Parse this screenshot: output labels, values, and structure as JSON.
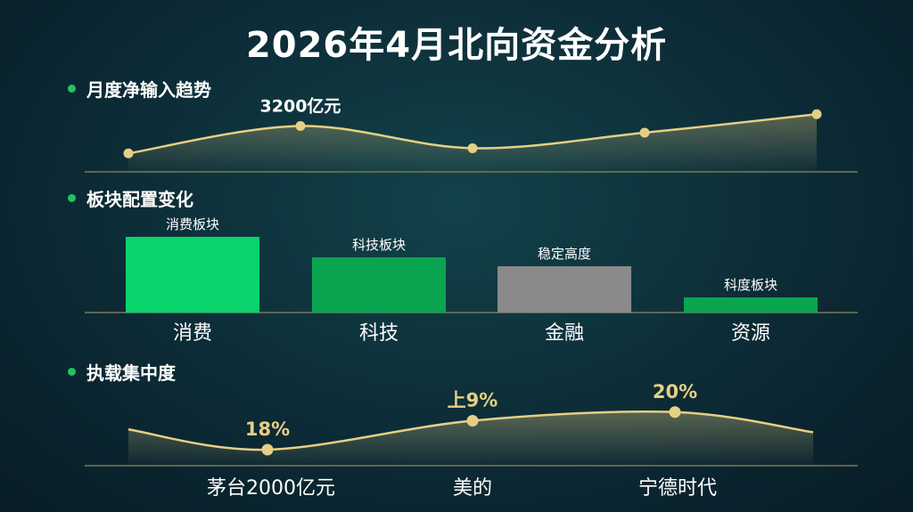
{
  "title": "2026年4月北向资金分析",
  "sections": {
    "trend": {
      "label": "月度净输入趋势"
    },
    "sector": {
      "label": "板块配置变化"
    },
    "concentration": {
      "label": "执载集中度"
    }
  },
  "colors": {
    "gold": "#e6cf85",
    "green_bright": "#0ad46c",
    "green_mid": "#0aa550",
    "gray": "#8a8a8a",
    "axis": "#7a7a55",
    "section_dot": "#20c45f"
  },
  "chart_data": [
    {
      "type": "line",
      "title": "月度净输入趋势",
      "x": [
        1,
        2,
        3,
        4,
        5
      ],
      "values": [
        0.25,
        0.62,
        0.32,
        0.53,
        0.78
      ],
      "data_labels": [
        "",
        "3200亿元",
        "",
        "",
        ""
      ]
    },
    {
      "type": "bar",
      "title": "板块配置变化",
      "categories": [
        "消费",
        "科技",
        "金融",
        "资源"
      ],
      "values": [
        85,
        62,
        52,
        17
      ],
      "bar_labels": [
        "消费板块",
        "科技板块",
        "稳定高度",
        "科度板块"
      ],
      "bar_colors": [
        "#0ad46c",
        "#0aa550",
        "#8a8a8a",
        "#0aa550"
      ]
    },
    {
      "type": "area",
      "title": "执载集中度",
      "categories": [
        "茅台2000亿元",
        "美的",
        "宁德时代"
      ],
      "x": [
        0,
        1,
        2,
        3,
        4
      ],
      "values": [
        0.55,
        0.2,
        0.7,
        0.85,
        0.5
      ],
      "point_labels": [
        "",
        "18%",
        "上9%",
        "20%",
        ""
      ]
    }
  ]
}
